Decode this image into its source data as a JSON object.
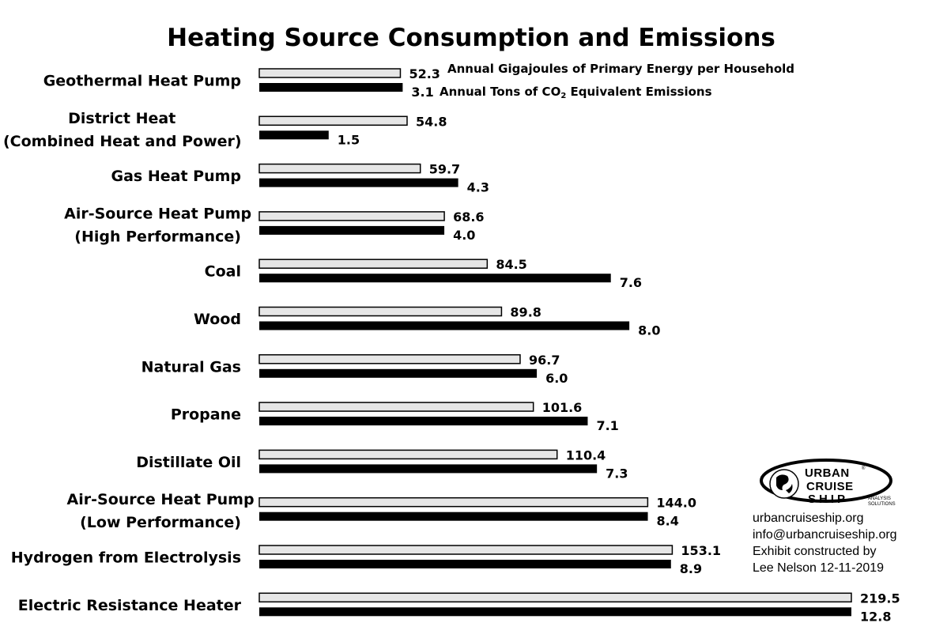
{
  "chart_data": {
    "type": "bar",
    "orientation": "horizontal",
    "title": "Heating Source Consumption and Emissions",
    "categories": [
      [
        "Geothermal Heat Pump"
      ],
      [
        "District Heat",
        "(Combined Heat and Power)"
      ],
      [
        "Gas Heat Pump"
      ],
      [
        "Air-Source Heat Pump",
        "(High Performance)"
      ],
      [
        "Coal"
      ],
      [
        "Wood"
      ],
      [
        "Natural Gas"
      ],
      [
        "Propane"
      ],
      [
        "Distillate Oil"
      ],
      [
        "Air-Source Heat Pump",
        "(Low Performance)"
      ],
      [
        "Hydrogen from Electrolysis"
      ],
      [
        "Electric Resistance Heater"
      ]
    ],
    "series": [
      {
        "name": "Annual Gigajoules of Primary Energy per Household",
        "color": "#e6e6e6",
        "values": [
          52.3,
          54.8,
          59.7,
          68.6,
          84.5,
          89.8,
          96.7,
          101.6,
          110.4,
          144.0,
          153.1,
          219.5
        ],
        "labels": [
          "52.3",
          "54.8",
          "59.7",
          "68.6",
          "84.5",
          "89.8",
          "96.7",
          "101.6",
          "110.4",
          "144.0",
          "153.1",
          "219.5"
        ],
        "xmax": 219.5
      },
      {
        "name_parts": [
          "Annual Tons of CO",
          "2",
          " Equivalent Emissions"
        ],
        "color": "#000000",
        "values": [
          3.1,
          1.5,
          4.3,
          4.0,
          7.6,
          8.0,
          6.0,
          7.1,
          7.3,
          8.4,
          8.9,
          12.8
        ],
        "labels": [
          "3.1",
          "1.5",
          "4.3",
          "4.0",
          "7.6",
          "8.0",
          "6.0",
          "7.1",
          "7.3",
          "8.4",
          "8.9",
          "12.8"
        ],
        "xmax": 12.8
      }
    ],
    "legend_placement": "inline-first-category",
    "grid": false
  },
  "logo": {
    "words": [
      "URBAN",
      "CRUISE",
      "SHIP"
    ],
    "tagline": [
      "ANALYSIS",
      "SOLUTIONS"
    ],
    "registered": "®"
  },
  "credits": [
    "urbancruiseship.org",
    "info@urbancruiseship.org",
    "Exhibit constructed by",
    "Lee Nelson 12-11-2019"
  ]
}
